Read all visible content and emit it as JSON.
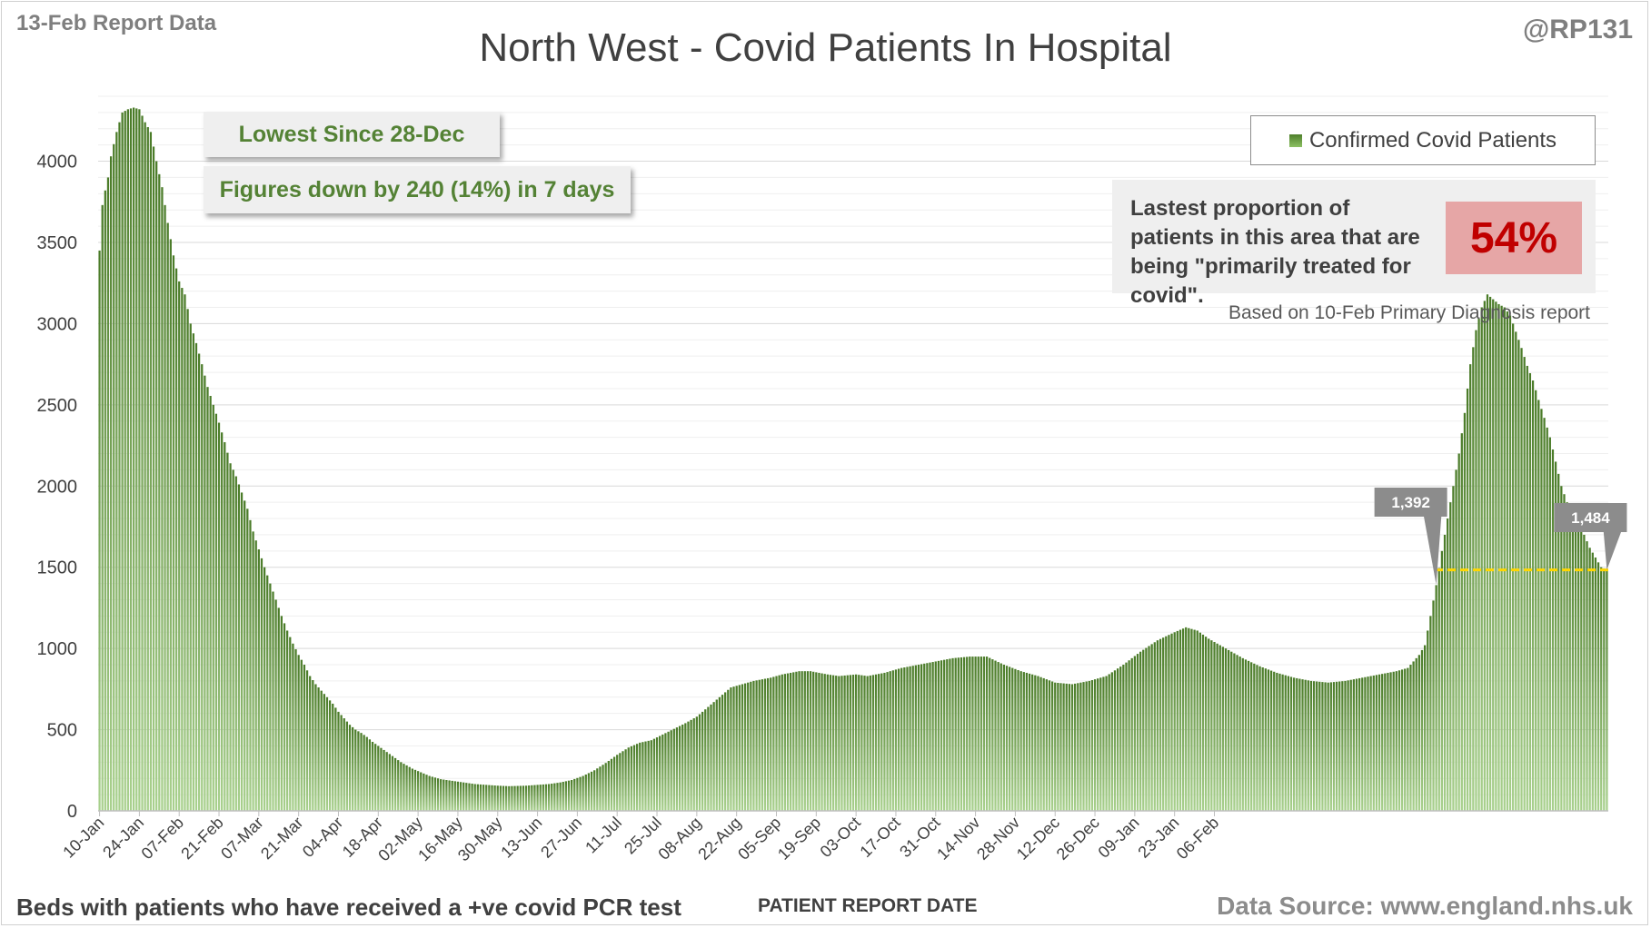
{
  "header": {
    "report_date": "13-Feb Report Data",
    "handle": "@RP131"
  },
  "callouts": {
    "lowest_since": "Lowest Since 28-Dec",
    "figures_down": "Figures down by 240 (14%) in 7 days"
  },
  "proportion": {
    "text": "Lastest proportion of patients in this area that are being \"primarily treated for covid\".",
    "value": "54%",
    "based_on": "Based on 10-Feb Primary Diagnosis report"
  },
  "footer": {
    "left": "Beds with patients who have received a +ve covid PCR test",
    "xlabel": "PATIENT REPORT DATE",
    "source": "Data Source: www.england.nhs.uk"
  },
  "colors": {
    "bar_top": "#4a7b28",
    "bar_bottom": "#a9d18e",
    "reference_line": "#ffd700",
    "marker": "#8c8c8c"
  },
  "chart_data": {
    "type": "bar",
    "title": "North West - Covid Patients In Hospital",
    "xlabel": "PATIENT REPORT DATE",
    "ylabel": "",
    "ylim": [
      0,
      4400
    ],
    "yticks": [
      0,
      500,
      1000,
      1500,
      2000,
      2500,
      3000,
      3500,
      4000
    ],
    "grid": true,
    "legend": {
      "entries": [
        "Confirmed Covid Patients"
      ],
      "position": "top-right"
    },
    "x_tick_labels": [
      "10-Jan",
      "24-Jan",
      "07-Feb",
      "21-Feb",
      "07-Mar",
      "21-Mar",
      "04-Apr",
      "18-Apr",
      "02-May",
      "16-May",
      "30-May",
      "13-Jun",
      "27-Jun",
      "11-Jul",
      "25-Jul",
      "08-Aug",
      "22-Aug",
      "05-Sep",
      "19-Sep",
      "03-Oct",
      "17-Oct",
      "31-Oct",
      "14-Nov",
      "28-Nov",
      "12-Dec",
      "26-Dec",
      "09-Jan",
      "23-Jan",
      "06-Feb"
    ],
    "series_anchors": [
      [
        0,
        3450
      ],
      [
        1,
        3730
      ],
      [
        2,
        3820
      ],
      [
        3,
        3900
      ],
      [
        4,
        4030
      ],
      [
        6,
        4180
      ],
      [
        8,
        4300
      ],
      [
        10,
        4320
      ],
      [
        12,
        4330
      ],
      [
        14,
        4320
      ],
      [
        16,
        4240
      ],
      [
        18,
        4180
      ],
      [
        20,
        4000
      ],
      [
        22,
        3840
      ],
      [
        24,
        3620
      ],
      [
        26,
        3420
      ],
      [
        28,
        3260
      ],
      [
        30,
        3180
      ],
      [
        32,
        3000
      ],
      [
        34,
        2880
      ],
      [
        36,
        2750
      ],
      [
        38,
        2610
      ],
      [
        40,
        2500
      ],
      [
        42,
        2390
      ],
      [
        44,
        2270
      ],
      [
        46,
        2140
      ],
      [
        48,
        2060
      ],
      [
        50,
        1960
      ],
      [
        52,
        1860
      ],
      [
        54,
        1720
      ],
      [
        56,
        1610
      ],
      [
        58,
        1500
      ],
      [
        60,
        1400
      ],
      [
        62,
        1300
      ],
      [
        64,
        1200
      ],
      [
        66,
        1110
      ],
      [
        68,
        1030
      ],
      [
        70,
        960
      ],
      [
        72,
        900
      ],
      [
        74,
        830
      ],
      [
        76,
        780
      ],
      [
        78,
        740
      ],
      [
        80,
        700
      ],
      [
        82,
        660
      ],
      [
        84,
        610
      ],
      [
        86,
        570
      ],
      [
        88,
        530
      ],
      [
        90,
        500
      ],
      [
        92,
        480
      ],
      [
        94,
        455
      ],
      [
        96,
        425
      ],
      [
        98,
        400
      ],
      [
        100,
        375
      ],
      [
        102,
        350
      ],
      [
        104,
        325
      ],
      [
        106,
        300
      ],
      [
        108,
        280
      ],
      [
        110,
        260
      ],
      [
        112,
        245
      ],
      [
        114,
        230
      ],
      [
        116,
        215
      ],
      [
        118,
        205
      ],
      [
        120,
        195
      ],
      [
        124,
        185
      ],
      [
        128,
        175
      ],
      [
        132,
        165
      ],
      [
        136,
        160
      ],
      [
        140,
        155
      ],
      [
        144,
        152
      ],
      [
        150,
        155
      ],
      [
        154,
        160
      ],
      [
        158,
        165
      ],
      [
        162,
        175
      ],
      [
        166,
        190
      ],
      [
        170,
        215
      ],
      [
        174,
        250
      ],
      [
        178,
        295
      ],
      [
        182,
        345
      ],
      [
        186,
        390
      ],
      [
        190,
        420
      ],
      [
        194,
        435
      ],
      [
        198,
        470
      ],
      [
        202,
        505
      ],
      [
        206,
        540
      ],
      [
        210,
        580
      ],
      [
        214,
        640
      ],
      [
        218,
        700
      ],
      [
        220,
        730
      ],
      [
        222,
        760
      ],
      [
        226,
        780
      ],
      [
        230,
        800
      ],
      [
        236,
        820
      ],
      [
        240,
        840
      ],
      [
        246,
        860
      ],
      [
        250,
        860
      ],
      [
        256,
        840
      ],
      [
        260,
        830
      ],
      [
        266,
        840
      ],
      [
        270,
        830
      ],
      [
        276,
        850
      ],
      [
        282,
        880
      ],
      [
        288,
        900
      ],
      [
        294,
        920
      ],
      [
        300,
        940
      ],
      [
        306,
        950
      ],
      [
        312,
        950
      ],
      [
        318,
        900
      ],
      [
        324,
        860
      ],
      [
        330,
        830
      ],
      [
        336,
        790
      ],
      [
        342,
        780
      ],
      [
        348,
        800
      ],
      [
        354,
        830
      ],
      [
        360,
        900
      ],
      [
        366,
        980
      ],
      [
        372,
        1050
      ],
      [
        378,
        1100
      ],
      [
        382,
        1130
      ],
      [
        386,
        1110
      ],
      [
        390,
        1060
      ],
      [
        396,
        1000
      ],
      [
        402,
        940
      ],
      [
        408,
        890
      ],
      [
        414,
        850
      ],
      [
        420,
        820
      ],
      [
        426,
        800
      ],
      [
        432,
        790
      ],
      [
        438,
        800
      ],
      [
        444,
        820
      ],
      [
        450,
        840
      ],
      [
        456,
        860
      ],
      [
        460,
        880
      ],
      [
        462,
        920
      ],
      [
        464,
        960
      ],
      [
        466,
        1020
      ],
      [
        468,
        1200
      ],
      [
        470,
        1390
      ],
      [
        472,
        1600
      ],
      [
        474,
        1800
      ],
      [
        476,
        2000
      ],
      [
        478,
        2200
      ],
      [
        480,
        2450
      ],
      [
        482,
        2750
      ],
      [
        484,
        2960
      ],
      [
        486,
        3100
      ],
      [
        488,
        3180
      ],
      [
        490,
        3150
      ],
      [
        492,
        3120
      ],
      [
        494,
        3100
      ],
      [
        496,
        3050
      ],
      [
        498,
        2950
      ],
      [
        500,
        2850
      ],
      [
        502,
        2740
      ],
      [
        504,
        2650
      ],
      [
        506,
        2530
      ],
      [
        508,
        2420
      ],
      [
        510,
        2300
      ],
      [
        512,
        2150
      ],
      [
        514,
        2000
      ],
      [
        516,
        1900
      ],
      [
        518,
        1820
      ],
      [
        520,
        1760
      ],
      [
        522,
        1700
      ],
      [
        524,
        1620
      ],
      [
        526,
        1560
      ],
      [
        528,
        1500
      ],
      [
        530,
        1484
      ]
    ],
    "annotations": [
      {
        "label": "1,392",
        "x_index": 470,
        "value": 1392
      },
      {
        "label": "1,484",
        "x_index": 530,
        "value": 1484
      }
    ],
    "reference_line": {
      "value": 1484,
      "from_index": 470,
      "to_index": 530,
      "style": "dashed"
    }
  }
}
